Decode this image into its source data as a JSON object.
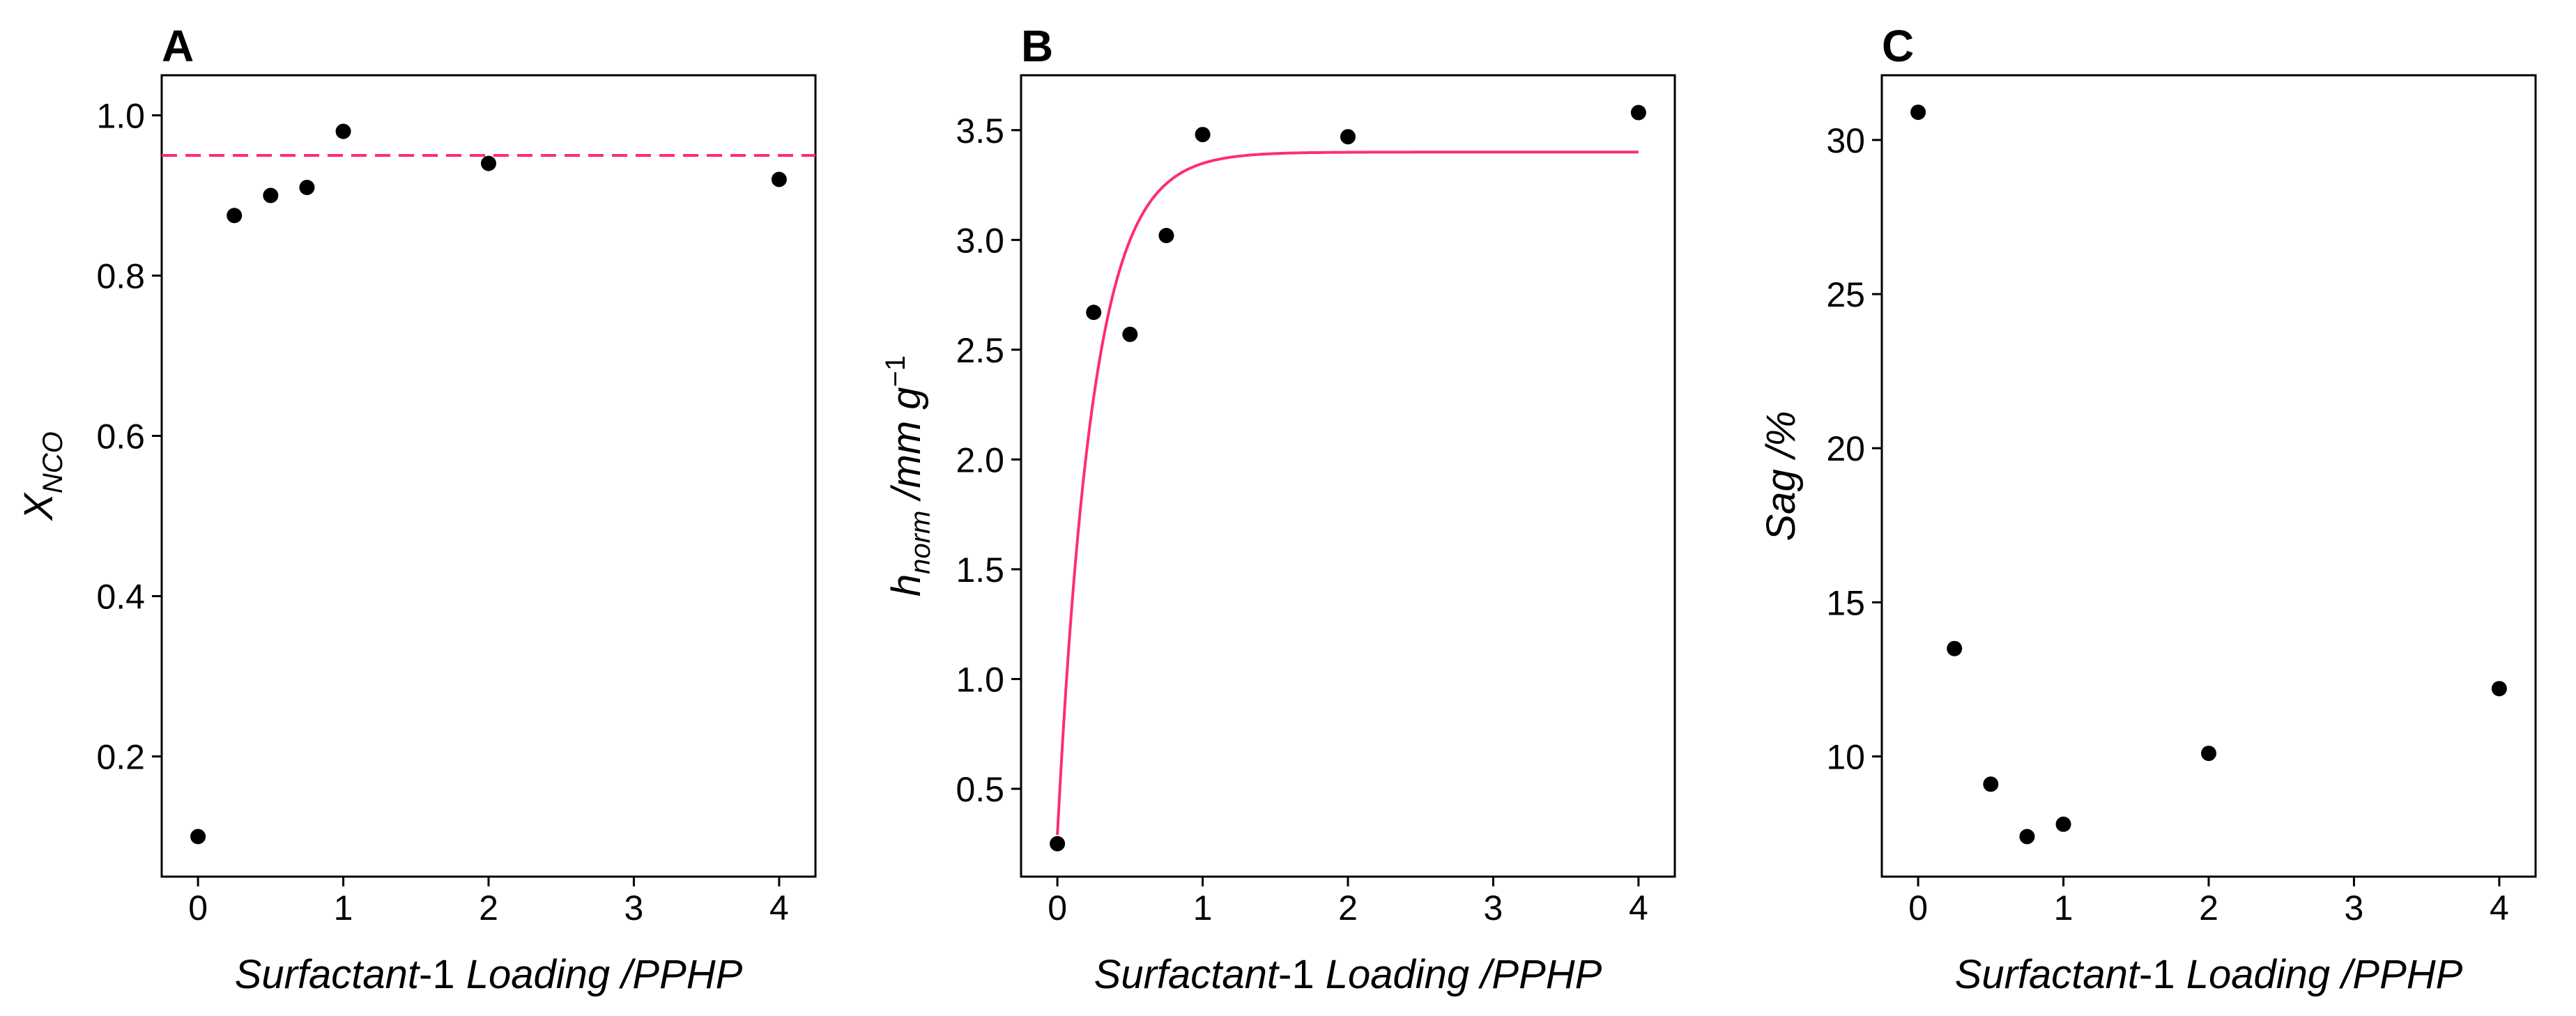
{
  "chart_data": [
    {
      "type": "scatter",
      "panel_label": "A",
      "ylabel_main": "X",
      "ylabel_sub": "NCO",
      "xlabel_italic_1": "Surfactant",
      "xlabel_upright": "-1",
      "xlabel_italic_2": " Loading /PPHP",
      "xlim": [
        -0.25,
        4.25
      ],
      "ylim": [
        0.05,
        1.05
      ],
      "xticks": [
        0,
        1,
        2,
        3,
        4
      ],
      "xtick_labels": [
        "0",
        "1",
        "2",
        "3",
        "4"
      ],
      "yticks": [
        0.2,
        0.4,
        0.6,
        0.8,
        1.0
      ],
      "ytick_labels": [
        "0.2",
        "0.4",
        "0.6",
        "0.8",
        "1.0"
      ],
      "points": [
        {
          "x": 0,
          "y": 0.1
        },
        {
          "x": 0.25,
          "y": 0.875
        },
        {
          "x": 0.5,
          "y": 0.9
        },
        {
          "x": 0.75,
          "y": 0.91
        },
        {
          "x": 1,
          "y": 0.98
        },
        {
          "x": 2,
          "y": 0.94
        },
        {
          "x": 4,
          "y": 0.92
        }
      ],
      "hline": {
        "y": 0.95,
        "style": "dashed",
        "color": "#ff2d6f"
      }
    },
    {
      "type": "scatter",
      "panel_label": "B",
      "ylabel_main": "h",
      "ylabel_sub": "norm",
      "ylabel_rest": " /mm g",
      "ylabel_sup": "−1",
      "xlabel_italic_1": "Surfactant",
      "xlabel_upright": "-1",
      "xlabel_italic_2": " Loading /PPHP",
      "xlim": [
        -0.25,
        4.25
      ],
      "ylim": [
        0.1,
        3.75
      ],
      "xticks": [
        0,
        1,
        2,
        3,
        4
      ],
      "xtick_labels": [
        "0",
        "1",
        "2",
        "3",
        "4"
      ],
      "yticks": [
        0.5,
        1.0,
        1.5,
        2.0,
        2.5,
        3.0,
        3.5
      ],
      "ytick_labels": [
        "0.5",
        "1.0",
        "1.5",
        "2.0",
        "2.5",
        "3.0",
        "3.5"
      ],
      "points": [
        {
          "x": 0,
          "y": 0.25
        },
        {
          "x": 0.25,
          "y": 2.67
        },
        {
          "x": 0.5,
          "y": 2.57
        },
        {
          "x": 0.75,
          "y": 3.02
        },
        {
          "x": 1,
          "y": 3.48
        },
        {
          "x": 2,
          "y": 3.47
        },
        {
          "x": 4,
          "y": 3.58
        }
      ],
      "fit": {
        "y0": 0.29,
        "ymax": 3.4,
        "k": 4.1,
        "xmax": 4,
        "color": "#ff2d6f"
      }
    },
    {
      "type": "scatter",
      "panel_label": "C",
      "ylabel_main": "Sag /%",
      "xlabel_italic_1": "Surfactant",
      "xlabel_upright": "-1",
      "xlabel_italic_2": " Loading /PPHP",
      "xlim": [
        -0.25,
        4.25
      ],
      "ylim": [
        6.1,
        32.1
      ],
      "xticks": [
        0,
        1,
        2,
        3,
        4
      ],
      "xtick_labels": [
        "0",
        "1",
        "2",
        "3",
        "4"
      ],
      "yticks": [
        10,
        15,
        20,
        25,
        30
      ],
      "ytick_labels": [
        "10",
        "15",
        "20",
        "25",
        "30"
      ],
      "points": [
        {
          "x": 0,
          "y": 30.9
        },
        {
          "x": 0.25,
          "y": 13.5
        },
        {
          "x": 0.5,
          "y": 9.1
        },
        {
          "x": 0.75,
          "y": 7.4
        },
        {
          "x": 1,
          "y": 7.8
        },
        {
          "x": 2,
          "y": 10.1
        },
        {
          "x": 4,
          "y": 12.2
        }
      ]
    }
  ]
}
